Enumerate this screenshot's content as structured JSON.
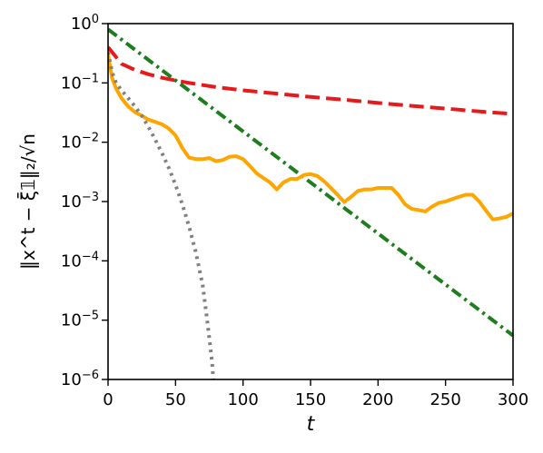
{
  "chart_data": {
    "type": "line",
    "xlabel": "t",
    "ylabel": "‖x^t − ξ̄𝟙‖₂/√n",
    "xlim": [
      0,
      300
    ],
    "ylim": [
      1e-06,
      1
    ],
    "yscale": "log",
    "grid": false,
    "x_ticks": [
      0,
      50,
      100,
      150,
      200,
      250,
      300
    ],
    "y_ticks": [
      {
        "value": 1e-06,
        "base": "10",
        "exp": "−6"
      },
      {
        "value": 1e-05,
        "base": "10",
        "exp": "−5"
      },
      {
        "value": 0.0001,
        "base": "10",
        "exp": "−4"
      },
      {
        "value": 0.001,
        "base": "10",
        "exp": "−3"
      },
      {
        "value": 0.01,
        "base": "10",
        "exp": "−2"
      },
      {
        "value": 0.1,
        "base": "10",
        "exp": "−1"
      },
      {
        "value": 1,
        "base": "10",
        "exp": "0"
      }
    ],
    "series": [
      {
        "color": "#e8191a",
        "dash": "dashed",
        "x": [
          0,
          10,
          20,
          30,
          40,
          50,
          60,
          70,
          80,
          100,
          125,
          150,
          175,
          200,
          225,
          250,
          275,
          300
        ],
        "y": [
          0.4,
          0.21,
          0.165,
          0.14,
          0.122,
          0.11,
          0.1,
          0.092,
          0.085,
          0.075,
          0.066,
          0.058,
          0.052,
          0.046,
          0.041,
          0.037,
          0.033,
          0.03
        ]
      },
      {
        "color": "#1e7d1e",
        "dash": "dashdot",
        "x": [
          0,
          300
        ],
        "y": [
          0.8,
          5.5e-06
        ]
      },
      {
        "color": "#ffa500",
        "dash": "solid",
        "x": [
          0,
          3,
          6,
          10,
          15,
          20,
          25,
          30,
          35,
          40,
          45,
          50,
          55,
          60,
          65,
          70,
          75,
          80,
          85,
          90,
          95,
          100,
          105,
          110,
          115,
          120,
          125,
          130,
          135,
          140,
          145,
          150,
          155,
          160,
          165,
          170,
          175,
          180,
          185,
          190,
          195,
          200,
          205,
          210,
          215,
          220,
          225,
          230,
          235,
          240,
          245,
          250,
          255,
          260,
          265,
          270,
          275,
          280,
          285,
          290,
          295,
          300
        ],
        "y": [
          0.3,
          0.12,
          0.08,
          0.055,
          0.04,
          0.032,
          0.028,
          0.024,
          0.022,
          0.02,
          0.017,
          0.013,
          0.008,
          0.0055,
          0.0052,
          0.0052,
          0.0054,
          0.0048,
          0.005,
          0.0057,
          0.0058,
          0.0052,
          0.004,
          0.003,
          0.0025,
          0.0021,
          0.0016,
          0.0021,
          0.0024,
          0.0024,
          0.0028,
          0.0029,
          0.0027,
          0.0022,
          0.0017,
          0.0013,
          0.00098,
          0.0012,
          0.0015,
          0.0016,
          0.0016,
          0.0017,
          0.0017,
          0.0017,
          0.0013,
          0.0009,
          0.00075,
          0.00072,
          0.00068,
          0.00082,
          0.00095,
          0.001,
          0.0011,
          0.0012,
          0.0013,
          0.0013,
          0.001,
          0.0007,
          0.0005,
          0.00052,
          0.00055,
          0.00063
        ]
      },
      {
        "color": "#808080",
        "dash": "dotted",
        "x": [
          0,
          3,
          6,
          10,
          15,
          20,
          25,
          30,
          35,
          40,
          45,
          50,
          55,
          60,
          65,
          70,
          73,
          75,
          77,
          78
        ],
        "y": [
          0.33,
          0.15,
          0.1,
          0.075,
          0.055,
          0.04,
          0.028,
          0.018,
          0.011,
          0.0065,
          0.0037,
          0.0019,
          0.0009,
          0.00038,
          0.00014,
          4e-05,
          1.2e-05,
          5e-06,
          2e-06,
          1e-06
        ]
      }
    ]
  }
}
